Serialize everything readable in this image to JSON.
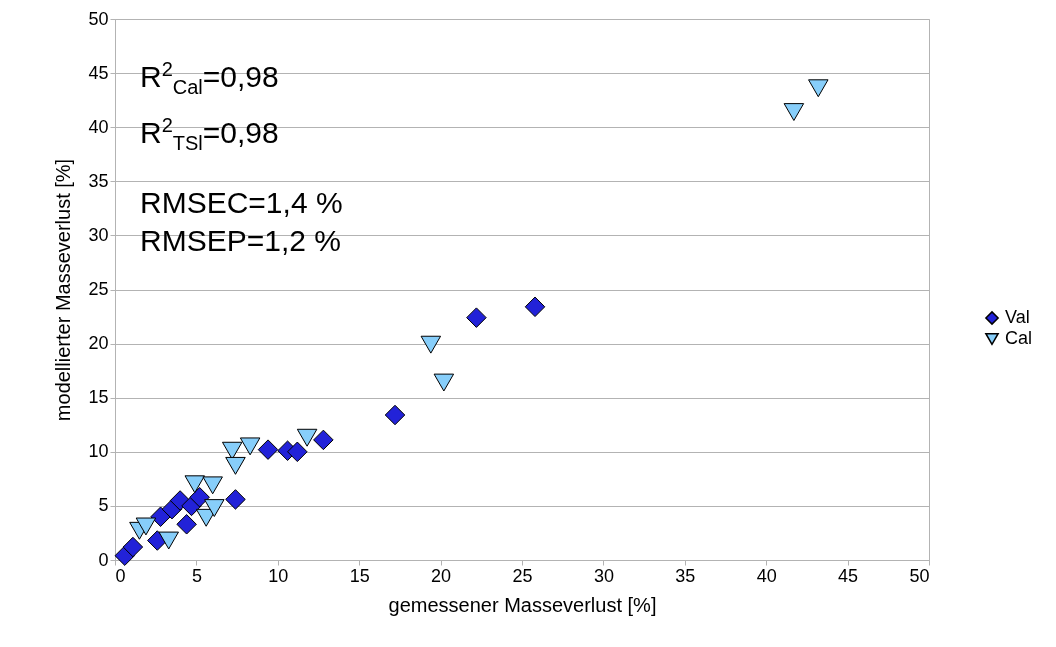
{
  "chart_data": {
    "type": "scatter",
    "xlabel": "gemessener Masseverlust [%]",
    "ylabel": "modellierter Masseverlust [%]",
    "xlim": [
      0,
      50
    ],
    "ylim": [
      0,
      50
    ],
    "xticks": [
      0,
      5,
      10,
      15,
      20,
      25,
      30,
      35,
      40,
      45,
      50
    ],
    "yticks": [
      0,
      5,
      10,
      15,
      20,
      25,
      30,
      35,
      40,
      45,
      50
    ],
    "grid": "y",
    "legend": "right",
    "annotations": [
      "R$^{2}$$_{Cal}$=0,98",
      "R$^{2}$$_{TSl}$=0,98",
      "RMSEC=1,4 %",
      "RMSEP=1,2 %"
    ],
    "series": [
      {
        "name": "Val",
        "color": "#2222d8",
        "marker": "diamond",
        "x": [
          0.6,
          1.1,
          2.6,
          2.8,
          3.5,
          4.0,
          4.4,
          4.7,
          5.2,
          7.4,
          9.4,
          10.6,
          11.2,
          12.8,
          17.2,
          22.2,
          25.8
        ],
        "values": [
          0.4,
          1.2,
          1.8,
          4.0,
          4.7,
          5.5,
          3.3,
          5.0,
          5.8,
          5.6,
          10.2,
          10.1,
          10.0,
          11.1,
          13.4,
          22.4,
          23.4
        ]
      },
      {
        "name": "Cal",
        "color": "#87cefa",
        "marker": "triangle-down",
        "x": [
          1.5,
          1.9,
          3.3,
          4.9,
          5.6,
          6.0,
          6.1,
          7.2,
          7.4,
          8.3,
          11.8,
          19.4,
          20.2,
          41.7,
          43.2
        ],
        "values": [
          2.7,
          3.1,
          1.8,
          7.0,
          3.9,
          6.9,
          4.8,
          10.1,
          8.7,
          10.5,
          11.3,
          19.9,
          16.4,
          41.4,
          43.6
        ]
      }
    ]
  }
}
